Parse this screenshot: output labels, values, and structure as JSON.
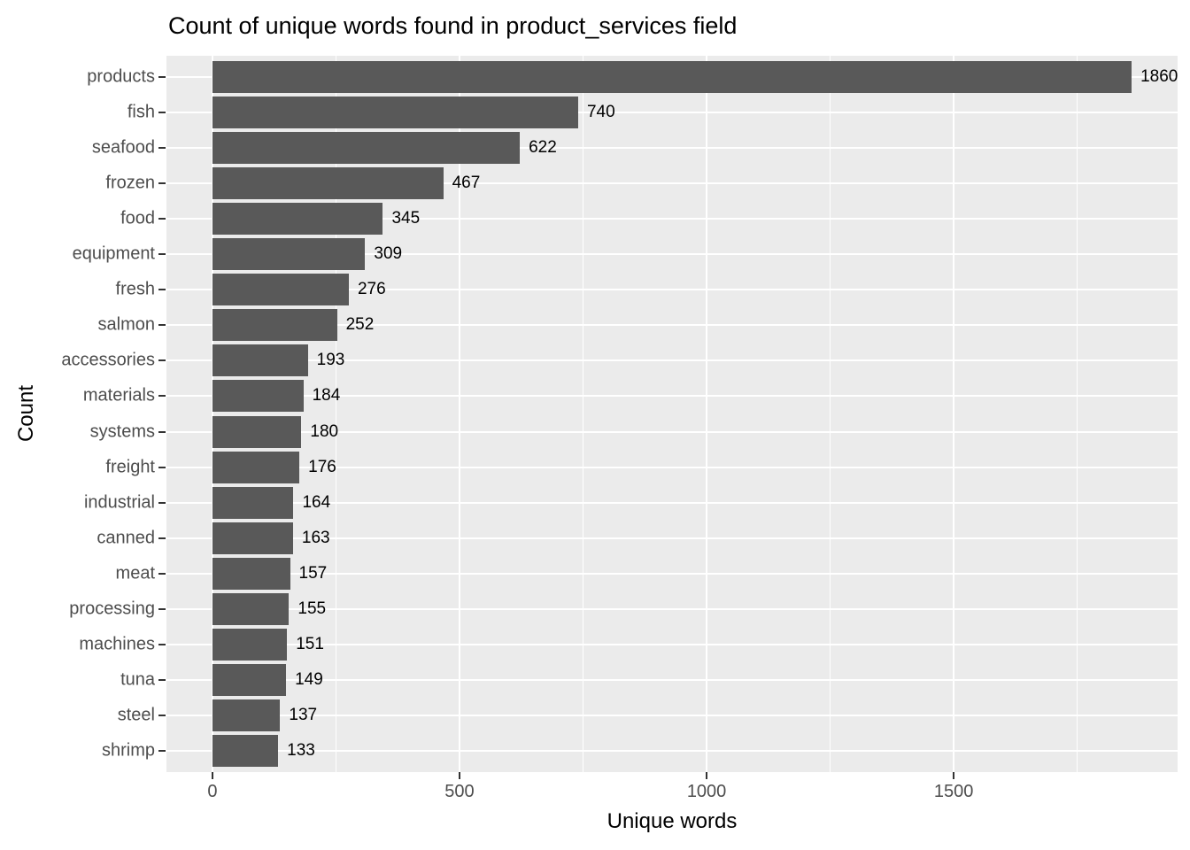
{
  "chart_data": {
    "type": "bar",
    "orientation": "horizontal",
    "title": "Count of unique words found in product_services field",
    "xlabel": "Unique words",
    "ylabel": "Count",
    "categories": [
      "products",
      "fish",
      "seafood",
      "frozen",
      "food",
      "equipment",
      "fresh",
      "salmon",
      "accessories",
      "materials",
      "systems",
      "freight",
      "industrial",
      "canned",
      "meat",
      "processing",
      "machines",
      "tuna",
      "steel",
      "shrimp"
    ],
    "values": [
      1860,
      740,
      622,
      467,
      345,
      309,
      276,
      252,
      193,
      184,
      180,
      176,
      164,
      163,
      157,
      155,
      151,
      149,
      137,
      133
    ],
    "bar_value_labels": [
      "1860",
      "740",
      "622",
      "467",
      "345",
      "309",
      "276",
      "252",
      "193",
      "184",
      "180",
      "176",
      "164",
      "163",
      "157",
      "155",
      "151",
      "149",
      "137",
      "133"
    ],
    "x_ticks": [
      0,
      500,
      1000,
      1500
    ],
    "x_tick_labels": [
      "0",
      "500",
      "1000",
      "1500"
    ],
    "x_minor_ticks": [
      250,
      750,
      1250,
      1750
    ],
    "xlim": [
      -93,
      1953
    ],
    "grid": true,
    "legend_position": "none",
    "colors": {
      "bar": "#595959",
      "panel_background": "#EBEBEB",
      "gridline": "#FFFFFF",
      "axis_text": "#4D4D4D",
      "tick_mark": "#333333",
      "title_text": "#000000"
    }
  }
}
